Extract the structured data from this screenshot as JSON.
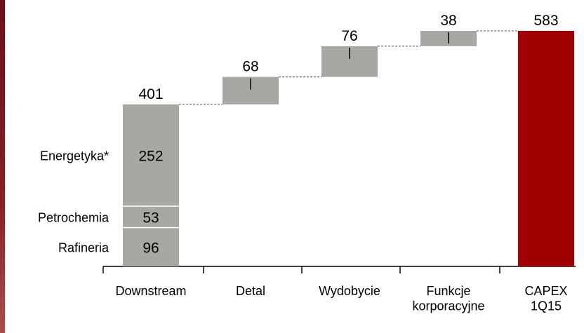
{
  "chart_data": {
    "type": "waterfall",
    "categories": [
      "Downstream",
      "Detal",
      "Wydobycie",
      "Funkcje\nkorporacyjne",
      "CAPEX\n1Q15"
    ],
    "values": [
      401,
      68,
      76,
      38,
      583
    ],
    "color": "#a7a7a3",
    "total_color": "#a00000",
    "breakdown": {
      "names": [
        "Rafineria",
        "Petrochemia",
        "Energetyka*"
      ],
      "values": [
        96,
        53,
        252
      ]
    }
  }
}
